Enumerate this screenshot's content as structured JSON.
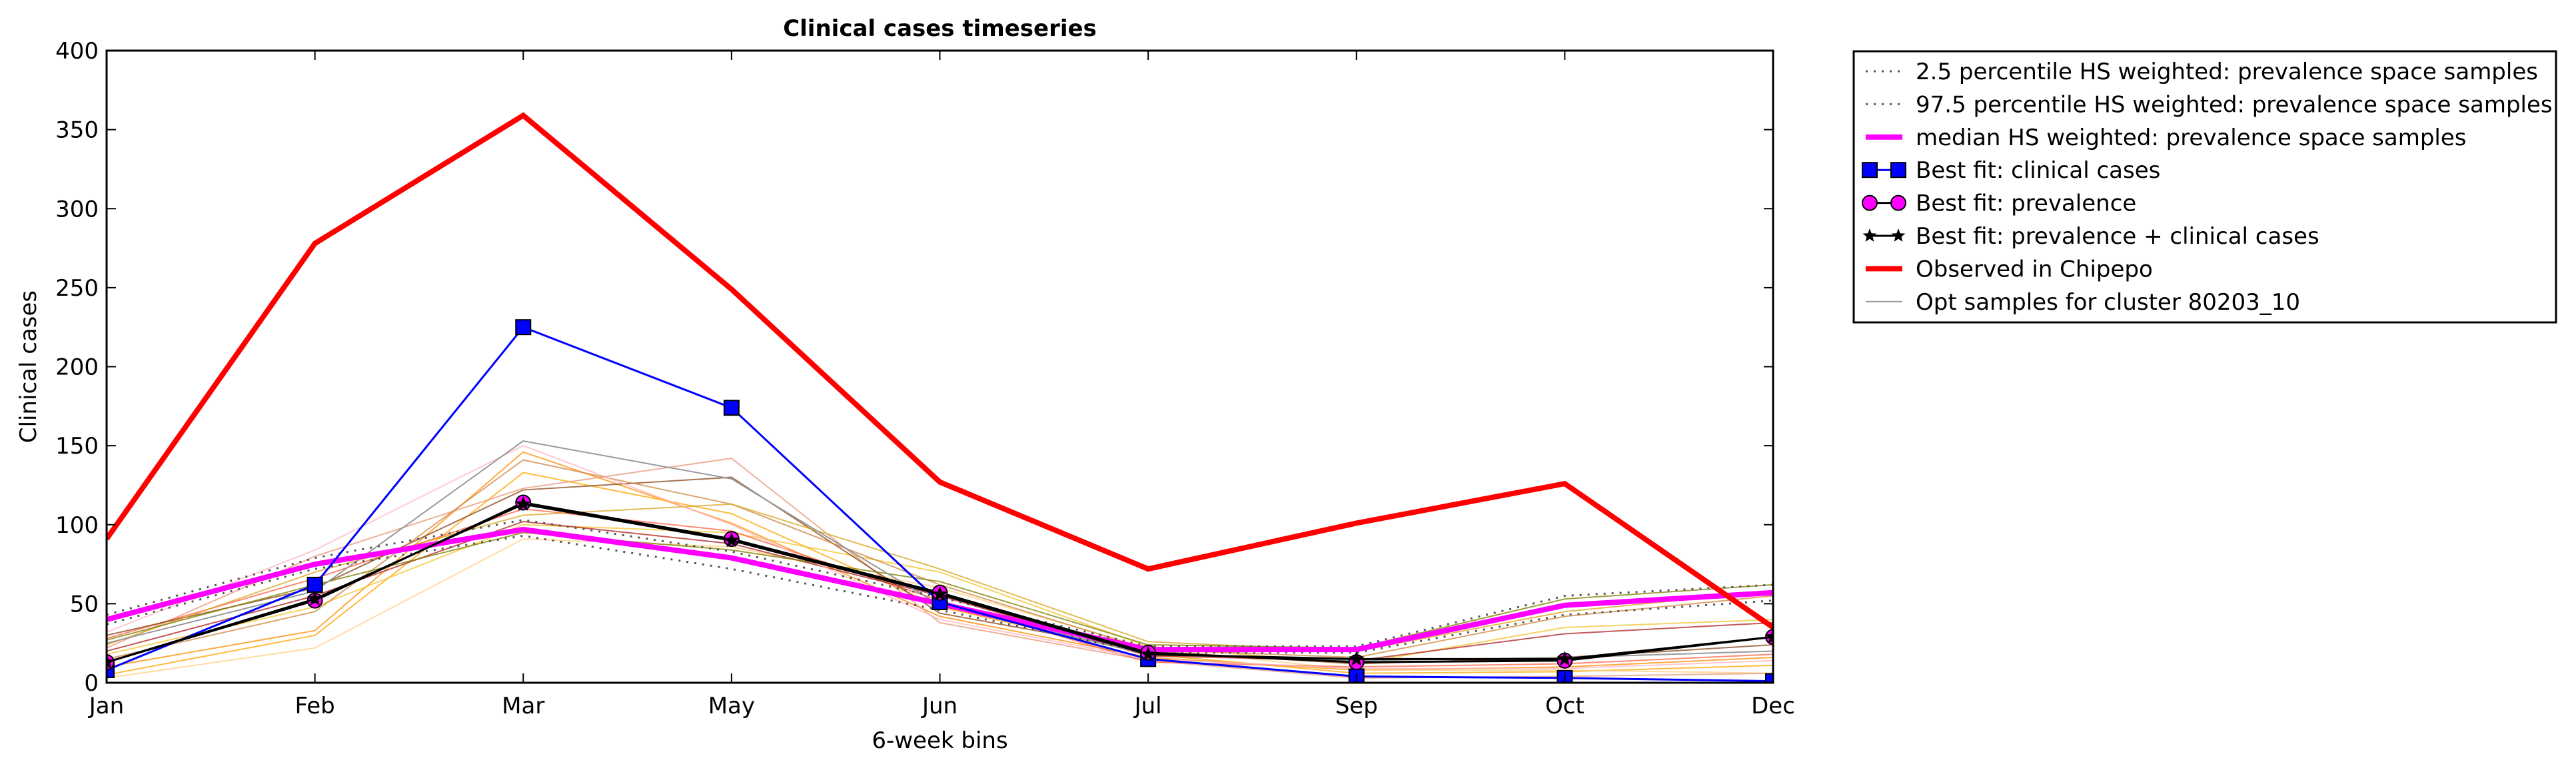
{
  "chart_data": {
    "type": "line",
    "title": "Clinical cases timeseries",
    "xlabel": "6-week bins",
    "ylabel": "Clinical cases",
    "categories": [
      "Jan",
      "Feb",
      "Mar",
      "May",
      "Jun",
      "Jul",
      "Sep",
      "Oct",
      "Dec"
    ],
    "ylim": [
      0,
      400
    ],
    "yticks": [
      0,
      50,
      100,
      150,
      200,
      250,
      300,
      350,
      400
    ],
    "grid": false,
    "legend_position": "outside-right",
    "series": [
      {
        "name": "2.5 percentile HS weighted: prevalence space samples",
        "style": "dotted",
        "color": "#555555",
        "values": [
          37,
          72,
          93,
          72,
          46,
          19,
          19,
          43,
          52
        ]
      },
      {
        "name": "97.5 percentile HS weighted: prevalence space samples",
        "style": "dotted",
        "color": "#555555",
        "values": [
          43,
          79,
          103,
          83,
          54,
          23,
          23,
          55,
          62
        ]
      },
      {
        "name": "median HS weighted: prevalence space samples",
        "style": "thick",
        "color": "#ff00ff",
        "values": [
          40,
          75,
          97,
          79,
          50,
          21,
          21,
          49,
          57
        ]
      },
      {
        "name": "Best fit: clinical cases",
        "style": "square-marker",
        "color": "#0000ff",
        "values": [
          8,
          62,
          225,
          174,
          51,
          15,
          4,
          3,
          1
        ]
      },
      {
        "name": "Best fit: prevalence",
        "style": "circle-marker",
        "color": "#ff00ff",
        "values": [
          13,
          52,
          114,
          91,
          57,
          19,
          13,
          14,
          29
        ]
      },
      {
        "name": "Best fit: prevalence + clinical cases",
        "style": "star-marker",
        "color": "#000000",
        "values": [
          13,
          53,
          113,
          90,
          56,
          18,
          15,
          15,
          29
        ]
      },
      {
        "name": "Observed in Chipepo",
        "style": "thick",
        "color": "#ff0000",
        "values": [
          91,
          278,
          359,
          249,
          127,
          72,
          101,
          126,
          35
        ]
      },
      {
        "name": "Opt samples for cluster 80203_10",
        "style": "thin",
        "color": "#999999",
        "values": [
          25,
          58,
          153,
          129,
          49,
          18,
          14,
          16,
          20
        ]
      }
    ],
    "sample_lines": [
      {
        "color": "#ff8c00",
        "values": [
          10,
          33,
          146,
          101,
          42,
          16,
          8,
          10,
          16
        ]
      },
      {
        "color": "#ffa500",
        "values": [
          5,
          30,
          133,
          107,
          48,
          18,
          6,
          7,
          11
        ]
      },
      {
        "color": "#ffd080",
        "values": [
          3,
          22,
          91,
          86,
          60,
          22,
          8,
          8,
          6
        ]
      },
      {
        "color": "#f4c430",
        "values": [
          18,
          48,
          100,
          95,
          70,
          23,
          12,
          35,
          40
        ]
      },
      {
        "color": "#e9967a",
        "values": [
          22,
          80,
          123,
          142,
          38,
          14,
          3,
          4,
          6
        ]
      },
      {
        "color": "#ff6347",
        "values": [
          28,
          66,
          110,
          96,
          52,
          13,
          10,
          12,
          18
        ]
      },
      {
        "color": "#b22222",
        "values": [
          20,
          55,
          102,
          88,
          55,
          17,
          14,
          31,
          38
        ]
      },
      {
        "color": "#8b4513",
        "values": [
          30,
          60,
          122,
          130,
          44,
          20,
          12,
          16,
          24
        ]
      },
      {
        "color": "#cd853f",
        "values": [
          15,
          45,
          141,
          113,
          62,
          21,
          16,
          42,
          55
        ]
      },
      {
        "color": "#daa520",
        "values": [
          24,
          70,
          106,
          113,
          72,
          26,
          20,
          45,
          58
        ]
      },
      {
        "color": "#808000",
        "values": [
          27,
          62,
          95,
          84,
          64,
          24,
          22,
          53,
          62
        ]
      },
      {
        "color": "#ffb6c1",
        "values": [
          32,
          84,
          150,
          100,
          40,
          15,
          9,
          9,
          14
        ]
      }
    ]
  }
}
